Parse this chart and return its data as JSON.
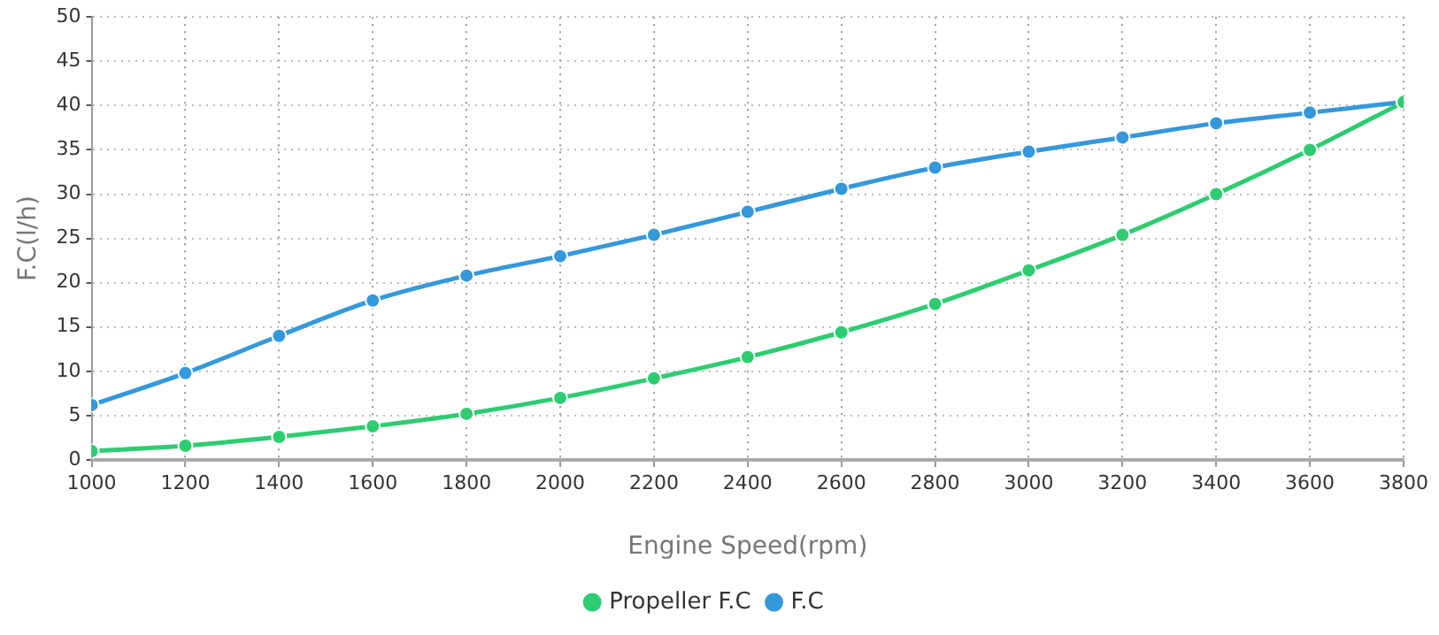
{
  "chart_data": {
    "type": "line",
    "xlabel": "Engine Speed(rpm)",
    "ylabel": "F.C(l/h)",
    "x": [
      1000,
      1200,
      1400,
      1600,
      1800,
      2000,
      2200,
      2400,
      2600,
      2800,
      3000,
      3200,
      3400,
      3600,
      3800
    ],
    "series": [
      {
        "name": "Propeller F.C",
        "color": "#2ecc71",
        "values": [
          1,
          1.6,
          2.6,
          3.8,
          5.2,
          7,
          9.2,
          11.6,
          14.4,
          17.6,
          21.4,
          25.4,
          30,
          35,
          40.4
        ]
      },
      {
        "name": "F.C",
        "color": "#3498db",
        "values": [
          6.2,
          9.8,
          14,
          18,
          20.8,
          23,
          25.4,
          28,
          30.6,
          33,
          34.8,
          36.4,
          38,
          39.2,
          40.4
        ]
      }
    ],
    "xlim": [
      1000,
      3800
    ],
    "xticks": [
      1000,
      1200,
      1400,
      1600,
      1800,
      2000,
      2200,
      2400,
      2600,
      2800,
      3000,
      3200,
      3400,
      3600,
      3800
    ],
    "ylim": [
      0,
      50
    ],
    "yticks": [
      0,
      5,
      10,
      15,
      20,
      25,
      30,
      35,
      40,
      45,
      50
    ],
    "grid": true,
    "legend": "bottom",
    "marker": "circle",
    "line_style": "solid"
  }
}
